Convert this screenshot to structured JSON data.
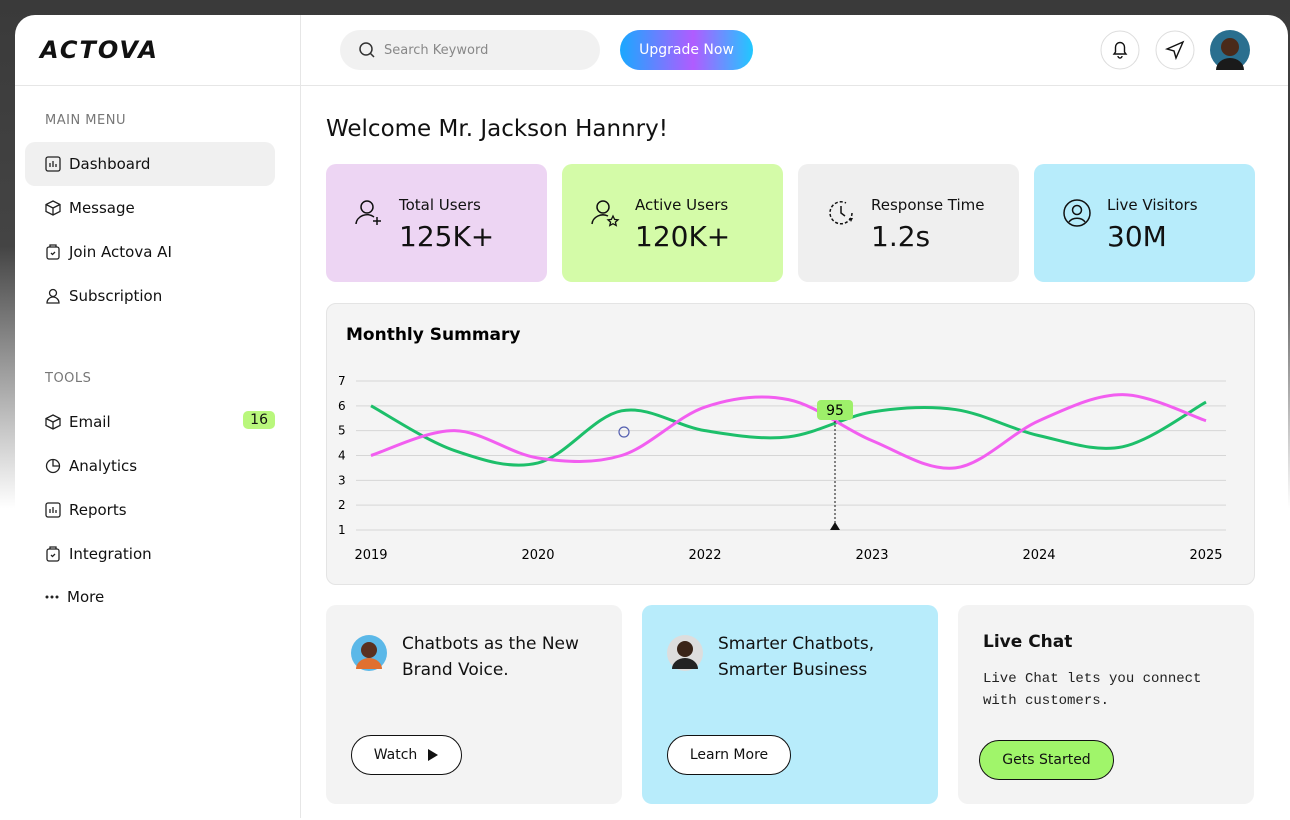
{
  "logo": "ACTOVA",
  "search_placeholder": "Search Keyword",
  "upgrade_button": "Upgrade Now",
  "sidebar": {
    "sections": [
      {
        "title": "MAIN MENU",
        "items": [
          {
            "label": "Dashboard"
          },
          {
            "label": "Message"
          },
          {
            "label": "Join Actova AI"
          },
          {
            "label": "Subscription"
          }
        ]
      },
      {
        "title": "TOOLS",
        "items": [
          {
            "label": "Email",
            "badge": 16
          },
          {
            "label": "Analytics"
          },
          {
            "label": "Reports"
          },
          {
            "label": "Integration"
          },
          {
            "label": "More"
          }
        ]
      }
    ]
  },
  "welcome": "Welcome Mr. Jackson Hannry!",
  "stats": [
    {
      "label": "Total Users",
      "value": "125K+"
    },
    {
      "label": "Active Users",
      "value": "120K+"
    },
    {
      "label": "Response Time",
      "value": "1.2s"
    },
    {
      "label": "Live Visitors",
      "value": "30M"
    }
  ],
  "chart_data": {
    "type": "line",
    "title": "Monthly Summary",
    "categories": [
      "2019",
      null,
      "2020",
      null,
      "2022",
      null,
      "2023",
      null,
      "2024",
      null,
      "2025"
    ],
    "series": [
      {
        "color": "#1dbf6a",
        "values": [
          6.0,
          4.2,
          3.7,
          5.8,
          5.0,
          4.75,
          5.75,
          5.85,
          4.8,
          4.35,
          6.15
        ]
      },
      {
        "color": "#f25ef0",
        "values": [
          4.0,
          5.0,
          3.9,
          4.0,
          5.95,
          6.25,
          4.6,
          3.5,
          5.4,
          6.45,
          5.4
        ]
      }
    ],
    "ylim": [
      1,
      7
    ],
    "yticks": [
      1,
      2,
      3,
      4,
      5,
      6,
      7
    ],
    "grid": true,
    "annotation": "95"
  },
  "cards": [
    {
      "title": "Chatbots as the New Brand Voice.",
      "button": "Watch"
    },
    {
      "title": "Smarter Chatbots, Smarter Business",
      "button": "Learn More"
    },
    {
      "title": "Live Chat",
      "text": "Live Chat lets you connect with customers.",
      "button": "Gets Started"
    }
  ]
}
